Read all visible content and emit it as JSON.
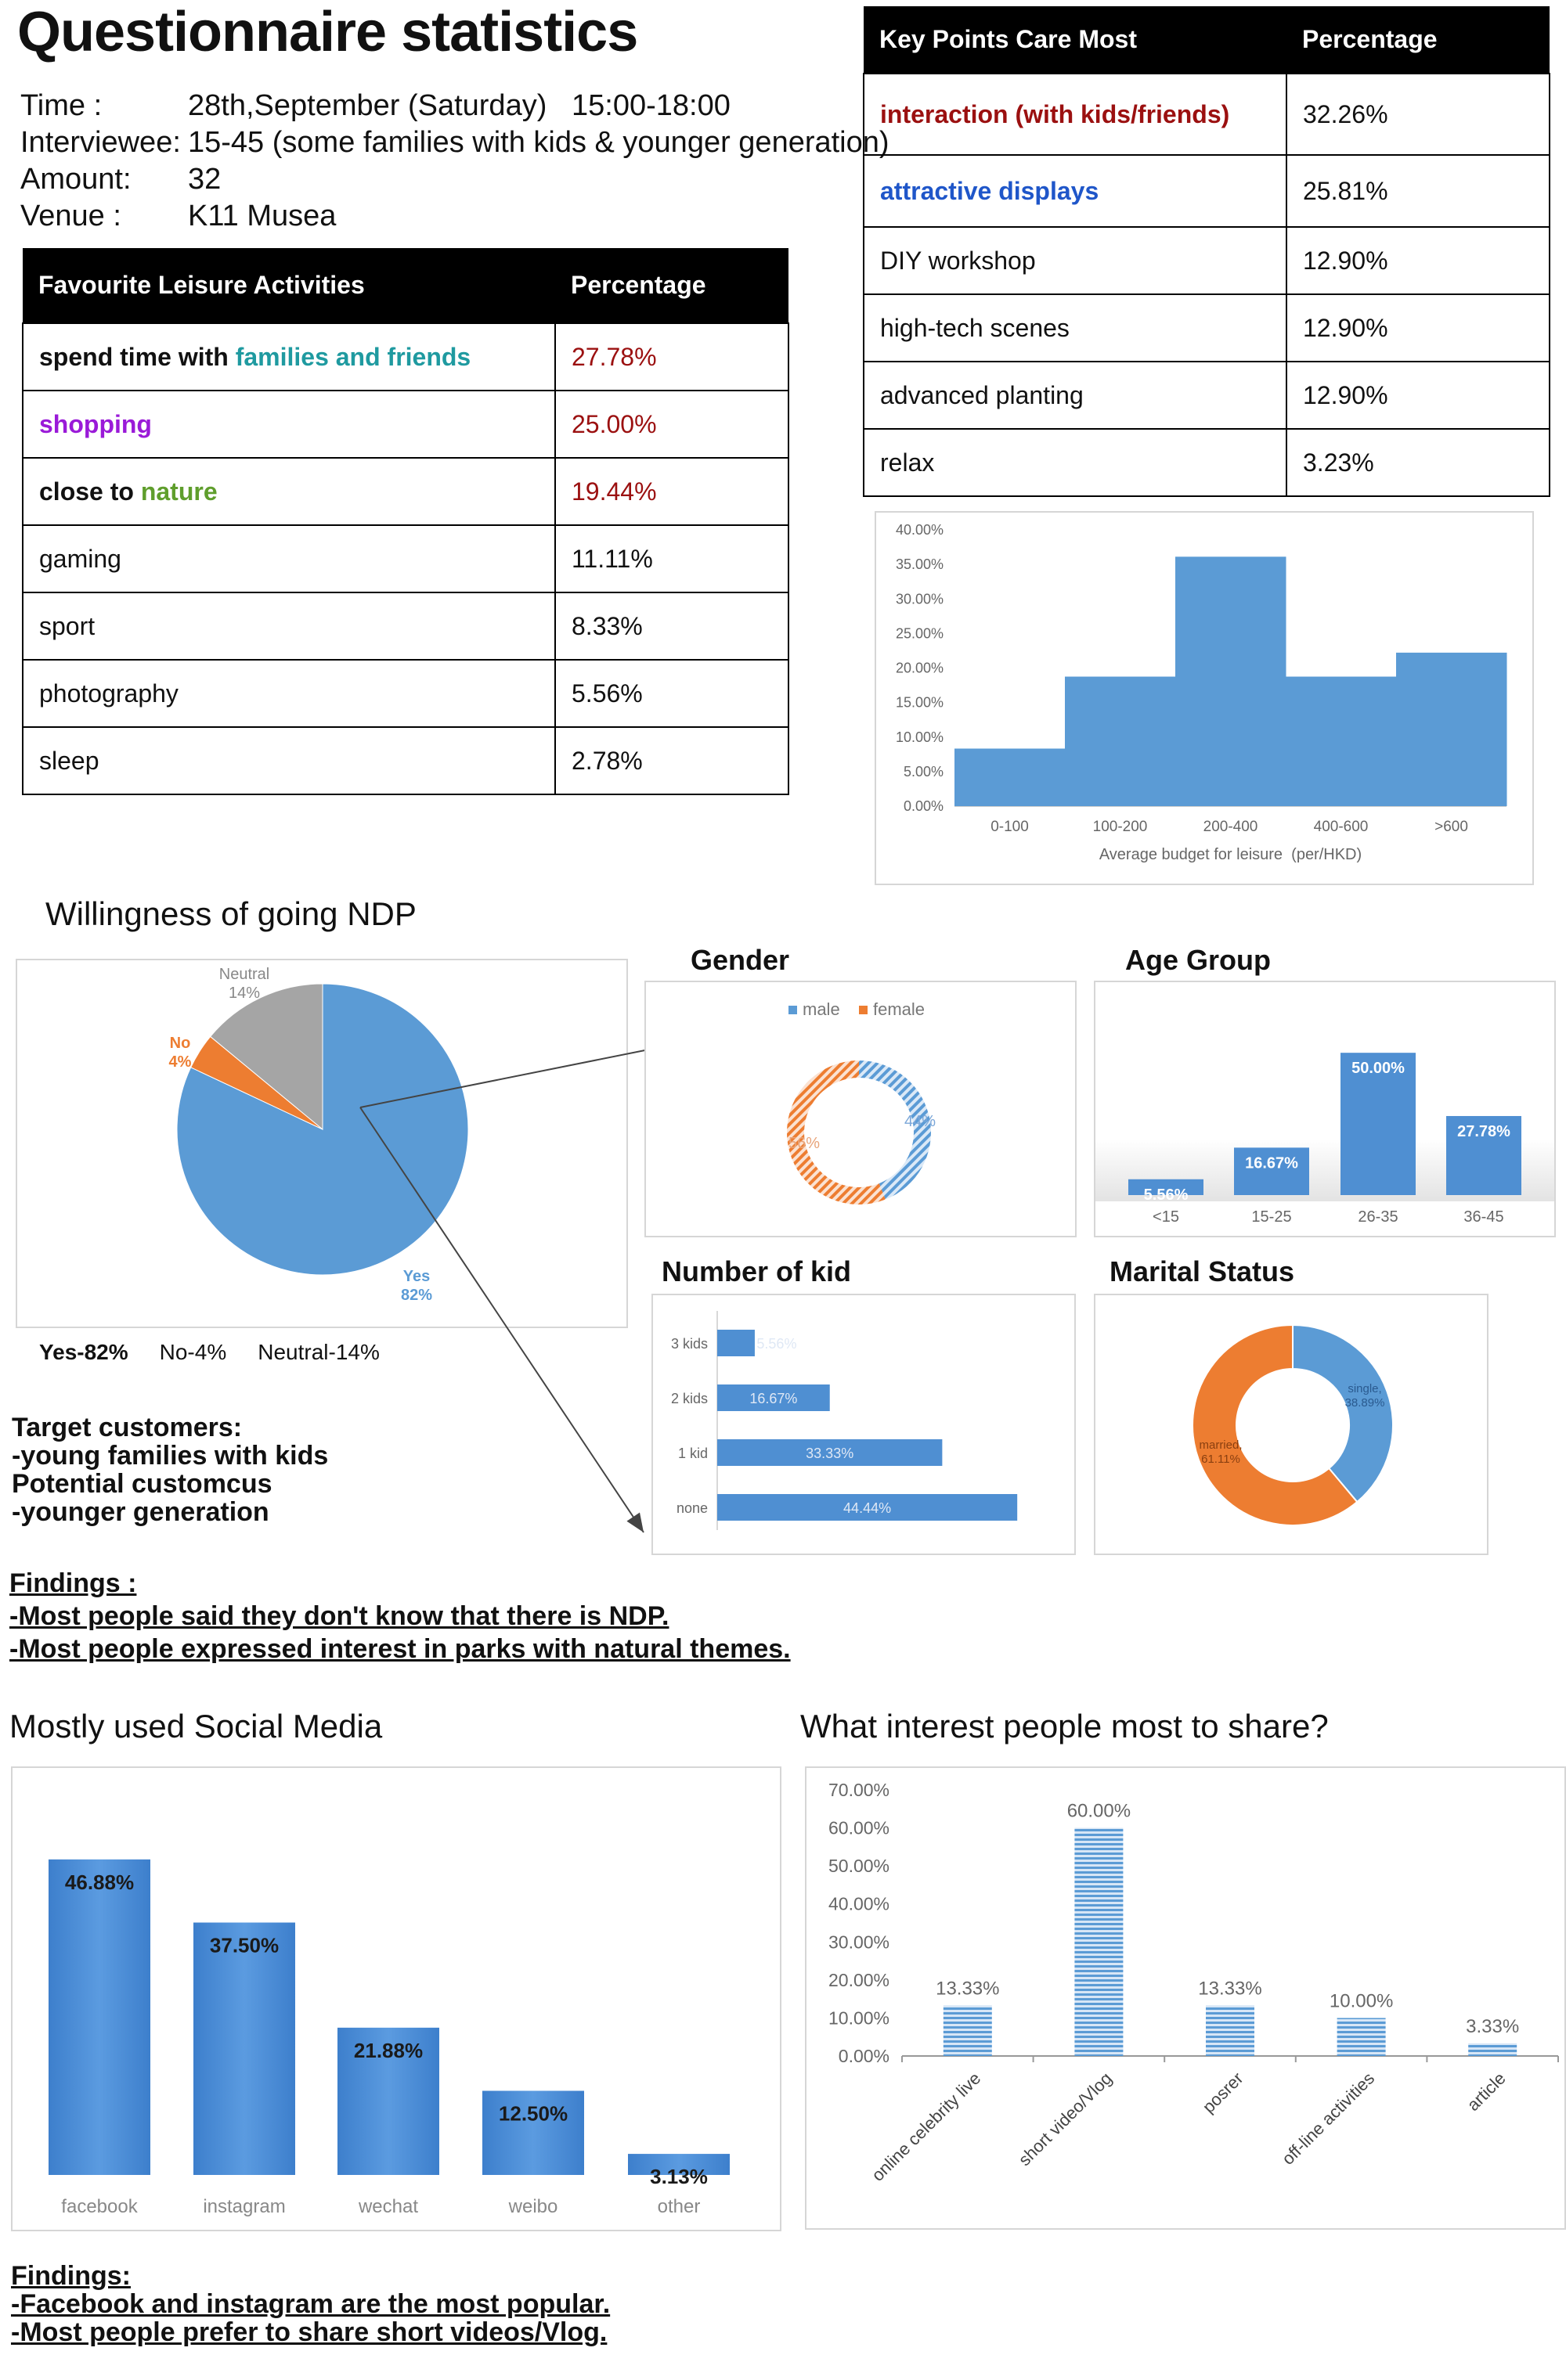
{
  "header": {
    "title": "Questionnaire statistics",
    "info": [
      {
        "key": "Time :",
        "value": "28th,September (Saturday)   15:00-18:00"
      },
      {
        "key": "Interviewee:",
        "value": "15-45 (some families with kids & younger generation)"
      },
      {
        "key": "Amount:",
        "value": "32"
      },
      {
        "key": "Venue :",
        "value": "K11 Musea"
      }
    ]
  },
  "leisure_table": {
    "headers": [
      "Favourite Leisure Activities",
      "Percentage"
    ],
    "rows": [
      {
        "pre": "spend time with ",
        "hl": "families and friends",
        "value": "27.78%"
      },
      {
        "pre": "",
        "hl": "shopping",
        "value": "25.00%"
      },
      {
        "pre": "close to ",
        "hl": "nature",
        "value": "19.44%"
      },
      {
        "pre": "gaming",
        "hl": "",
        "value": "11.11%"
      },
      {
        "pre": "sport",
        "hl": "",
        "value": "8.33%"
      },
      {
        "pre": "photography",
        "hl": "",
        "value": "5.56%"
      },
      {
        "pre": "sleep",
        "hl": "",
        "value": "2.78%"
      }
    ]
  },
  "keypoints_table": {
    "headers": [
      "Key Points Care Most",
      "Percentage"
    ],
    "rows": [
      {
        "label": "interaction (with kids/friends)",
        "value": "32.26%"
      },
      {
        "label": "attractive displays",
        "value": "25.81%"
      },
      {
        "label": "DIY workshop",
        "value": "12.90%"
      },
      {
        "label": "high-tech scenes",
        "value": "12.90%"
      },
      {
        "label": "advanced planting",
        "value": "12.90%"
      },
      {
        "label": "relax",
        "value": "3.23%"
      }
    ]
  },
  "sections": {
    "willingness": "Willingness of going NDP",
    "gender": "Gender",
    "age": "Age Group",
    "kids": "Number of kid",
    "marital": "Marital Status",
    "social": "Mostly used Social Media",
    "share": "What interest people most to share?"
  },
  "willingness_legend": [
    "Yes-82%",
    "No-4%",
    "Neutral-14%"
  ],
  "target": {
    "lines": [
      "Target customers:",
      "-young families with kids",
      "Potential customcus",
      "-younger generation"
    ]
  },
  "findings1": {
    "lines": [
      "Findings :",
      "-Most people said they don't know that there is NDP.",
      "-Most people expressed interest in parks with natural themes."
    ]
  },
  "findings2": {
    "lines": [
      "Findings:",
      "-Facebook and instagram are the most popular.",
      "-Most people prefer to share short videos/Vlog."
    ]
  },
  "colors": {
    "blue": "#5b9bd5",
    "orange": "#ed7d31",
    "gray": "#a5a5a5",
    "barblue": "#4f8fd2"
  },
  "chart_data": [
    {
      "id": "budget",
      "type": "bar",
      "categories": [
        "0-100",
        "100-200",
        "200-400",
        "400-600",
        ">600"
      ],
      "values": [
        8.33,
        18.75,
        36.11,
        18.75,
        22.22
      ],
      "xlabel": "Average budget for leisure  (per/HKD)",
      "ylabel": "",
      "ylim": [
        0,
        40
      ],
      "yticks": [
        "0.00%",
        "5.00%",
        "10.00%",
        "15.00%",
        "20.00%",
        "25.00%",
        "30.00%",
        "35.00%",
        "40.00%"
      ]
    },
    {
      "id": "willingness",
      "type": "pie",
      "labels": [
        "Yes",
        "No",
        "Neutral"
      ],
      "values": [
        82,
        4,
        14
      ],
      "value_labels": [
        "82%",
        "4%",
        "14%"
      ],
      "colors": [
        "#5b9bd5",
        "#ed7d31",
        "#a5a5a5"
      ]
    },
    {
      "id": "gender",
      "type": "pie",
      "labels": [
        "male",
        "female"
      ],
      "values": [
        44,
        56
      ],
      "value_labels": [
        "44%",
        "56%"
      ],
      "colors": [
        "#5b9bd5",
        "#ed7d31"
      ]
    },
    {
      "id": "age",
      "type": "bar",
      "categories": [
        "<15",
        "15-25",
        "26-35",
        "36-45"
      ],
      "values": [
        5.56,
        16.67,
        50.0,
        27.78
      ],
      "value_labels": [
        "5.56%",
        "16.67%",
        "50.00%",
        "27.78%"
      ],
      "ylim": [
        0,
        55
      ]
    },
    {
      "id": "kids",
      "type": "bar",
      "orientation": "horizontal",
      "categories": [
        "3 kids",
        "2 kids",
        "1 kid",
        "none"
      ],
      "values": [
        5.56,
        16.67,
        33.33,
        44.44
      ],
      "value_labels": [
        "5.56%",
        "16.67%",
        "33.33%",
        "44.44%"
      ],
      "xlim": [
        0,
        45
      ]
    },
    {
      "id": "marital",
      "type": "pie",
      "labels": [
        "single",
        "married"
      ],
      "values": [
        38.89,
        61.11
      ],
      "value_labels": [
        "38.89%",
        "61.11%"
      ],
      "colors": [
        "#5b9bd5",
        "#ed7d31"
      ]
    },
    {
      "id": "social",
      "type": "bar",
      "categories": [
        "facebook",
        "instagram",
        "wechat",
        "weibo",
        "other"
      ],
      "values": [
        46.88,
        37.5,
        21.88,
        12.5,
        3.13
      ],
      "value_labels": [
        "46.88%",
        "37.50%",
        "21.88%",
        "12.50%",
        "3.13%"
      ],
      "ylim": [
        0,
        50
      ]
    },
    {
      "id": "share",
      "type": "bar",
      "categories": [
        "online celebrity live",
        "short video/Vlog",
        "posrer",
        "off-line activities",
        "article"
      ],
      "values": [
        13.33,
        60.0,
        13.33,
        10.0,
        3.33
      ],
      "value_labels": [
        "13.33%",
        "60.00%",
        "13.33%",
        "10.00%",
        "3.33%"
      ],
      "ylim": [
        0,
        70
      ],
      "yticks": [
        "0.00%",
        "10.00%",
        "20.00%",
        "30.00%",
        "40.00%",
        "50.00%",
        "60.00%",
        "70.00%"
      ]
    }
  ]
}
